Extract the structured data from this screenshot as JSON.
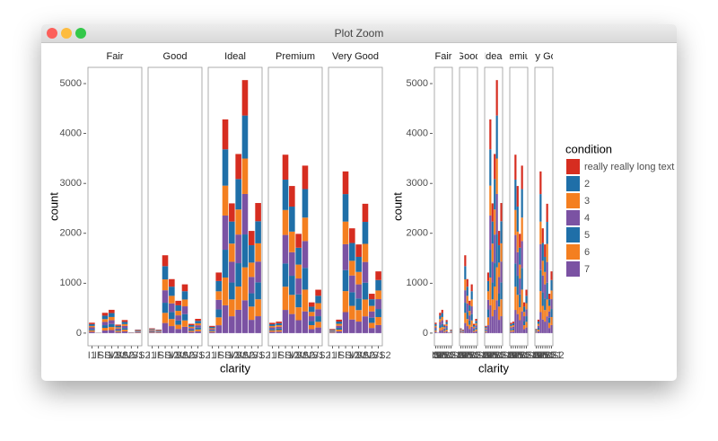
{
  "window_title": "Plot Zoom",
  "chart_data": {
    "type": "stacked-bar",
    "x_label": "clarity",
    "y_label": "count",
    "legend_title": "condition",
    "ylim": [
      -254,
      5325
    ],
    "yticks": [
      0,
      1000,
      2000,
      3000,
      4000,
      5000
    ],
    "categories": [
      "I1",
      "IF",
      "SI1",
      "SI2",
      "VS1",
      "VS2",
      "VVS1",
      "VVS2"
    ],
    "series": [
      {
        "name": "really really long text",
        "color": "#d62d20"
      },
      {
        "name": "2",
        "color": "#1f6fa8"
      },
      {
        "name": "3",
        "color": "#f47f20"
      },
      {
        "name": "4",
        "color": "#7b52a3"
      },
      {
        "name": "5",
        "color": "#1f6fa8"
      },
      {
        "name": "6",
        "color": "#f47f20"
      },
      {
        "name": "7",
        "color": "#7b52a3"
      }
    ],
    "facets": [
      {
        "name": "Fair",
        "values": [
          [
            29,
            1,
            57,
            65,
            24,
            37,
            2,
            10
          ],
          [
            36,
            2,
            69,
            79,
            29,
            44,
            3,
            12
          ],
          [
            29,
            1,
            57,
            65,
            24,
            37,
            2,
            10
          ],
          [
            34,
            2,
            65,
            75,
            27,
            42,
            3,
            11
          ],
          [
            27,
            1,
            53,
            61,
            22,
            34,
            2,
            9
          ],
          [
            27,
            1,
            53,
            61,
            22,
            34,
            2,
            9
          ],
          [
            27,
            1,
            53,
            61,
            22,
            34,
            2,
            9
          ]
        ]
      },
      {
        "name": "Good",
        "values": [
          [
            13,
            10,
            218,
            151,
            91,
            137,
            26,
            40
          ],
          [
            16,
            12,
            265,
            184,
            110,
            166,
            32,
            49
          ],
          [
            13,
            10,
            218,
            151,
            91,
            137,
            26,
            40
          ],
          [
            15,
            11,
            250,
            173,
            104,
            156,
            30,
            46
          ],
          [
            13,
            9,
            203,
            141,
            84,
            127,
            24,
            37
          ],
          [
            13,
            9,
            203,
            141,
            84,
            127,
            24,
            37
          ],
          [
            13,
            9,
            203,
            141,
            84,
            127,
            24,
            37
          ]
        ]
      },
      {
        "name": "Ideal",
        "values": [
          [
            20,
            170,
            599,
            364,
            502,
            710,
            287,
            365
          ],
          [
            25,
            206,
            728,
            442,
            610,
            862,
            348,
            443
          ],
          [
            20,
            170,
            599,
            364,
            502,
            710,
            287,
            365
          ],
          [
            23,
            194,
            685,
            416,
            574,
            811,
            328,
            417
          ],
          [
            19,
            158,
            557,
            338,
            467,
            659,
            266,
            339
          ],
          [
            19,
            158,
            557,
            338,
            467,
            659,
            266,
            339
          ],
          [
            19,
            158,
            557,
            338,
            467,
            659,
            266,
            339
          ]
        ]
      },
      {
        "name": "Premium",
        "values": [
          [
            29,
            32,
            500,
            413,
            278,
            470,
            86,
            122
          ],
          [
            35,
            39,
            608,
            501,
            338,
            571,
            105,
            148
          ],
          [
            29,
            32,
            500,
            413,
            278,
            470,
            86,
            122
          ],
          [
            33,
            37,
            572,
            472,
            318,
            537,
            99,
            139
          ],
          [
            27,
            30,
            465,
            383,
            259,
            436,
            80,
            113
          ],
          [
            27,
            30,
            465,
            383,
            259,
            436,
            80,
            113
          ],
          [
            27,
            30,
            465,
            383,
            259,
            436,
            80,
            113
          ]
        ]
      },
      {
        "name": "Very Good",
        "values": [
          [
            12,
            38,
            454,
            294,
            249,
            363,
            110,
            173
          ],
          [
            14,
            46,
            551,
            357,
            302,
            440,
            134,
            210
          ],
          [
            12,
            38,
            454,
            294,
            249,
            363,
            110,
            173
          ],
          [
            13,
            43,
            518,
            336,
            284,
            415,
            126,
            198
          ],
          [
            11,
            35,
            421,
            273,
            231,
            337,
            103,
            161
          ],
          [
            11,
            35,
            421,
            273,
            231,
            337,
            103,
            161
          ],
          [
            11,
            35,
            421,
            273,
            231,
            337,
            103,
            161
          ]
        ]
      }
    ]
  }
}
